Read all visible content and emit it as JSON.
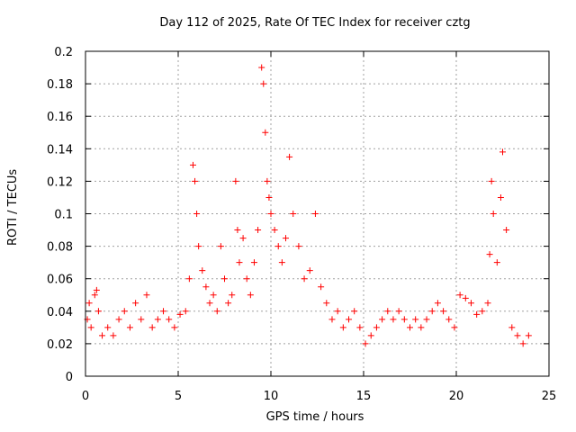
{
  "chart_data": {
    "type": "scatter",
    "title": "Day 112 of 2025, Rate Of TEC Index for receiver cztg",
    "xlabel": "GPS time / hours",
    "ylabel": "ROTI / TECUs",
    "xlim": [
      0,
      25
    ],
    "ylim": [
      0,
      0.2
    ],
    "x_ticks": [
      "0",
      "5",
      "10",
      "15",
      "20",
      "25"
    ],
    "y_ticks": [
      "0",
      "0.02",
      "0.04",
      "0.06",
      "0.08",
      "0.1",
      "0.12",
      "0.14",
      "0.16",
      "0.18",
      "0.2"
    ],
    "grid": true,
    "marker": "+",
    "marker_color": "#ff0000",
    "series": [
      {
        "x": [
          0.1,
          0.2,
          0.3,
          0.5,
          0.6,
          0.7,
          0.9,
          1.2,
          1.5,
          1.8,
          2.1,
          2.4,
          2.7,
          3.0,
          3.3,
          3.6,
          3.9,
          4.2,
          4.5,
          4.8,
          5.1,
          5.4,
          5.6,
          5.8,
          5.9,
          6.0,
          6.1,
          6.3,
          6.5,
          6.7,
          6.9,
          7.1,
          7.3,
          7.5,
          7.7,
          7.9,
          8.1,
          8.2,
          8.3,
          8.5,
          8.7,
          8.9,
          9.1,
          9.3,
          9.5,
          9.6,
          9.7,
          9.8,
          9.9,
          10.0,
          10.2,
          10.4,
          10.6,
          10.8,
          11.0,
          11.2,
          11.5,
          11.8,
          12.1,
          12.4,
          12.7,
          13.0,
          13.3,
          13.6,
          13.9,
          14.2,
          14.5,
          14.8,
          15.1,
          15.4,
          15.7,
          16.0,
          16.3,
          16.6,
          16.9,
          17.2,
          17.5,
          17.8,
          18.1,
          18.4,
          18.7,
          19.0,
          19.3,
          19.6,
          19.9,
          20.2,
          20.5,
          20.8,
          21.1,
          21.4,
          21.7,
          21.8,
          21.9,
          22.0,
          22.2,
          22.4,
          22.5,
          22.7,
          23.0,
          23.3,
          23.6,
          23.9
        ],
        "y": [
          0.035,
          0.045,
          0.03,
          0.05,
          0.053,
          0.04,
          0.025,
          0.03,
          0.025,
          0.035,
          0.04,
          0.03,
          0.045,
          0.035,
          0.05,
          0.03,
          0.035,
          0.04,
          0.035,
          0.03,
          0.038,
          0.04,
          0.06,
          0.13,
          0.12,
          0.1,
          0.08,
          0.065,
          0.055,
          0.045,
          0.05,
          0.04,
          0.08,
          0.06,
          0.045,
          0.05,
          0.12,
          0.09,
          0.07,
          0.085,
          0.06,
          0.05,
          0.07,
          0.09,
          0.19,
          0.18,
          0.15,
          0.12,
          0.11,
          0.1,
          0.09,
          0.08,
          0.07,
          0.085,
          0.135,
          0.1,
          0.08,
          0.06,
          0.065,
          0.1,
          0.055,
          0.045,
          0.035,
          0.04,
          0.03,
          0.035,
          0.04,
          0.03,
          0.02,
          0.025,
          0.03,
          0.035,
          0.04,
          0.035,
          0.04,
          0.035,
          0.03,
          0.035,
          0.03,
          0.035,
          0.04,
          0.045,
          0.04,
          0.035,
          0.03,
          0.05,
          0.048,
          0.045,
          0.038,
          0.04,
          0.045,
          0.075,
          0.12,
          0.1,
          0.07,
          0.11,
          0.138,
          0.09,
          0.03,
          0.025,
          0.02,
          0.025
        ]
      }
    ]
  }
}
